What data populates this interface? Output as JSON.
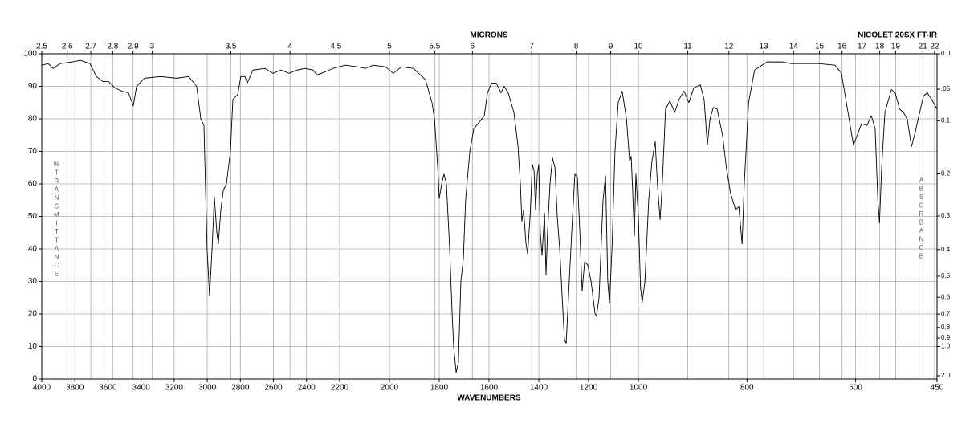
{
  "chart_data": {
    "type": "line",
    "title": "NICOLET 20SX FT-IR",
    "x_label": "WAVENUMBERS",
    "x2_label": "MICRONS",
    "y_label": "%TRANSMITTANCE",
    "y2_label": "ABSORBANCE",
    "xlim": [
      4000,
      450
    ],
    "x_breaks": [
      2200,
      1000
    ],
    "xticks": [
      4000,
      3800,
      3600,
      3400,
      3200,
      3000,
      2800,
      2600,
      2400,
      2200,
      2000,
      1800,
      1600,
      1400,
      1200,
      1000,
      800,
      600,
      450
    ],
    "x2ticks": [
      2.5,
      2.6,
      2.7,
      2.8,
      2.9,
      3,
      3.5,
      4,
      4.5,
      5,
      5.5,
      6,
      7,
      8,
      9,
      10,
      11,
      12,
      13,
      14,
      15,
      16,
      17,
      18,
      19,
      21,
      22
    ],
    "ylim": [
      0,
      100
    ],
    "yticks": [
      0,
      10,
      20,
      30,
      40,
      50,
      60,
      70,
      80,
      90,
      100
    ],
    "y2ticks": [
      {
        "value": 0,
        "label": "0.0"
      },
      {
        "value": 0.05,
        "label": ".05"
      },
      0.1,
      0.2,
      0.3,
      0.4,
      0.5,
      0.6,
      0.7,
      0.8,
      0.9,
      {
        "value": 1,
        "label": "1.0"
      },
      {
        "value": 2,
        "label": "2.0"
      }
    ],
    "grid": true,
    "series": [
      {
        "color": "#000000",
        "x": [
          4000,
          3961,
          3932,
          3888,
          3816,
          3767,
          3709,
          3670,
          3631,
          3597,
          3558,
          3515,
          3476,
          3447,
          3427,
          3379,
          3282,
          3185,
          3112,
          3064,
          3039,
          3020,
          3001,
          2986,
          2971,
          2957,
          2942,
          2933,
          2918,
          2903,
          2884,
          2860,
          2845,
          2816,
          2797,
          2772,
          2758,
          2724,
          2651,
          2603,
          2554,
          2506,
          2457,
          2409,
          2360,
          2336,
          2287,
          2239,
          2177,
          2129,
          2097,
          2065,
          2016,
          1984,
          1952,
          1903,
          1855,
          1829,
          1819,
          1806,
          1800,
          1790,
          1781,
          1771,
          1758,
          1748,
          1742,
          1732,
          1723,
          1713,
          1703,
          1694,
          1677,
          1661,
          1639,
          1619,
          1606,
          1590,
          1571,
          1552,
          1539,
          1523,
          1500,
          1484,
          1474,
          1468,
          1461,
          1452,
          1445,
          1435,
          1426,
          1419,
          1413,
          1406,
          1400,
          1394,
          1387,
          1377,
          1371,
          1365,
          1355,
          1345,
          1335,
          1326,
          1316,
          1306,
          1297,
          1290,
          1281,
          1268,
          1255,
          1245,
          1235,
          1226,
          1216,
          1203,
          1190,
          1174,
          1168,
          1158,
          1142,
          1132,
          1123,
          1116,
          1106,
          1094,
          1081,
          1065,
          1048,
          1035,
          1029,
          1023,
          1016,
          1010,
          1000,
          996,
          993,
          988,
          981,
          975,
          969,
          965,
          960,
          956,
          950,
          942,
          933,
          925,
          916,
          907,
          898,
          886,
          879,
          873,
          868,
          862,
          855,
          845,
          838,
          830,
          821,
          815,
          809,
          805,
          797,
          786,
          763,
          734,
          719,
          697,
          668,
          638,
          626,
          615,
          604,
          597,
          589,
          579,
          571,
          564,
          559,
          556,
          552,
          546,
          534,
          527,
          519,
          512,
          505,
          497,
          490,
          482,
          475,
          468,
          460,
          450
        ],
        "values": [
          96.5,
          97,
          95.5,
          97,
          97.5,
          98,
          97,
          93,
          91.5,
          91.5,
          89.5,
          88.5,
          88,
          84,
          90,
          92.5,
          93,
          92.5,
          93,
          90,
          80,
          78,
          40,
          25.5,
          40,
          56,
          45,
          41.5,
          52,
          58,
          60,
          70,
          86,
          87.5,
          93,
          93,
          91,
          95,
          95.5,
          94,
          95,
          94,
          95,
          95.5,
          95,
          93.5,
          94.5,
          95.5,
          96.5,
          96,
          95.5,
          96.5,
          96,
          94,
          96,
          95.5,
          92,
          85,
          80,
          65,
          55.5,
          60,
          63,
          60,
          40,
          20,
          10,
          2,
          5,
          30,
          37,
          55,
          70,
          77,
          79,
          81,
          88,
          91,
          91,
          88,
          90,
          88,
          82,
          72,
          60,
          48.5,
          52,
          42,
          38.5,
          50,
          66,
          64,
          52,
          63,
          66,
          45,
          38,
          51,
          32,
          45,
          60,
          68,
          65,
          50,
          40,
          25,
          12,
          11,
          25,
          45,
          63,
          62,
          45,
          27,
          36,
          35,
          30,
          20,
          19.5,
          25,
          55,
          62.5,
          30,
          23.5,
          40,
          70,
          85,
          88.5,
          80,
          67,
          68.5,
          58,
          44,
          63,
          50,
          28,
          23.5,
          30,
          55,
          67,
          73,
          60,
          49,
          60,
          83,
          85.5,
          82,
          86,
          88.5,
          85,
          89.5,
          90.5,
          86,
          72,
          80,
          83.5,
          83,
          75,
          65,
          57,
          52,
          53,
          41.5,
          60,
          85,
          95,
          97.5,
          97.5,
          97,
          97,
          97,
          96.5,
          94,
          83,
          72,
          75,
          78.5,
          78,
          81,
          77,
          55,
          48,
          65,
          82,
          89,
          88,
          83,
          82,
          80,
          71.5,
          76,
          82,
          87,
          88,
          86,
          83
        ]
      }
    ]
  }
}
